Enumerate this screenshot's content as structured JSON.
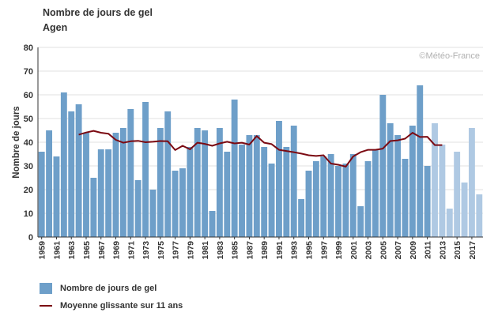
{
  "header": {
    "title": "Nombre de jours de gel",
    "subtitle": "Agen"
  },
  "colors": {
    "bar": "#6e9fc9",
    "bar_recent": "#afc9e3",
    "line": "#7b0a12",
    "grid": "#e2e2e2",
    "axis": "#333333"
  },
  "chart_data": {
    "type": "bar",
    "credit": "©Météo-France",
    "ylabel": "Nombre de jours",
    "xlabel": "",
    "ylim": [
      0,
      80
    ],
    "yticks": [
      0,
      10,
      20,
      30,
      40,
      50,
      60,
      70,
      80
    ],
    "grid": true,
    "legend_placement": "bottom-left",
    "x": [
      1959,
      1960,
      1961,
      1962,
      1963,
      1964,
      1965,
      1966,
      1967,
      1968,
      1969,
      1970,
      1971,
      1972,
      1973,
      1974,
      1975,
      1976,
      1977,
      1978,
      1979,
      1980,
      1981,
      1982,
      1983,
      1984,
      1985,
      1986,
      1987,
      1988,
      1989,
      1990,
      1991,
      1992,
      1993,
      1994,
      1995,
      1996,
      1997,
      1998,
      1999,
      2000,
      2001,
      2002,
      2003,
      2004,
      2005,
      2006,
      2007,
      2008,
      2009,
      2010,
      2011,
      2012,
      2013,
      2014,
      2015,
      2016,
      2017,
      2018
    ],
    "xtick_labels": [
      "1959",
      "1961",
      "1963",
      "1965",
      "1967",
      "1969",
      "1971",
      "1973",
      "1975",
      "1977",
      "1979",
      "1981",
      "1983",
      "1985",
      "1987",
      "1989",
      "1991",
      "1993",
      "1995",
      "1997",
      "1999",
      "2001",
      "2003",
      "2005",
      "2007",
      "2009",
      "2011",
      "2013",
      "2015",
      "2017"
    ],
    "series": [
      {
        "name": "Nombre de jours de gel",
        "kind": "bar",
        "values": [
          36,
          45,
          34,
          61,
          53,
          56,
          44,
          25,
          37,
          37,
          44,
          46,
          54,
          24,
          57,
          20,
          46,
          53,
          28,
          29,
          38,
          46,
          45,
          11,
          46,
          36,
          58,
          39,
          43,
          43,
          38,
          31,
          49,
          38,
          47,
          16,
          28,
          32,
          34,
          35,
          30,
          31,
          35,
          13,
          32,
          37,
          60,
          48,
          43,
          33,
          47,
          64,
          30,
          48,
          39,
          12,
          36,
          23,
          46,
          18
        ],
        "recent_from": 2012
      },
      {
        "name": "Moyenne glissante sur 11 ans",
        "kind": "line",
        "x": [
          1964,
          1965,
          1966,
          1967,
          1968,
          1969,
          1970,
          1971,
          1972,
          1973,
          1974,
          1975,
          1976,
          1977,
          1978,
          1979,
          1980,
          1981,
          1982,
          1983,
          1984,
          1985,
          1986,
          1987,
          1988,
          1989,
          1990,
          1991,
          1992,
          1993,
          1994,
          1995,
          1996,
          1997,
          1998,
          1999,
          2000,
          2001,
          2002,
          2003,
          2004,
          2005,
          2006,
          2007,
          2008,
          2009,
          2010,
          2011,
          2012,
          2013
        ],
        "values": [
          43.2,
          44.1,
          44.8,
          44.0,
          43.6,
          41.0,
          39.8,
          40.4,
          40.6,
          40.0,
          40.2,
          40.5,
          40.4,
          36.7,
          38.5,
          37.0,
          39.8,
          39.3,
          38.5,
          39.5,
          40.2,
          39.5,
          39.8,
          39.0,
          42.6,
          39.8,
          39.2,
          36.8,
          36.3,
          35.8,
          35.2,
          34.5,
          34.2,
          34.5,
          31.0,
          30.5,
          29.7,
          34.0,
          35.8,
          36.8,
          36.8,
          37.3,
          40.5,
          40.8,
          41.5,
          44.0,
          42.2,
          42.3,
          38.8,
          38.8
        ]
      }
    ],
    "legend": [
      {
        "label": "Nombre de jours de gel",
        "kind": "bar"
      },
      {
        "label": "Moyenne glissante sur 11 ans",
        "kind": "line"
      }
    ]
  }
}
